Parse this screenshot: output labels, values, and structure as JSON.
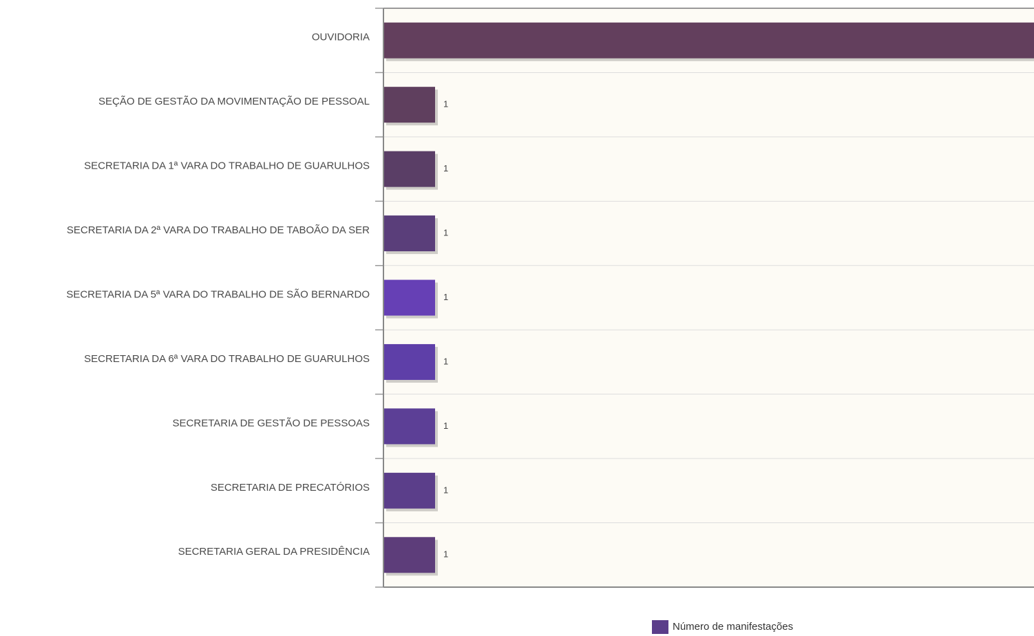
{
  "chart_data": {
    "type": "hbar",
    "categories": [
      "OUVIDORIA",
      "SEÇÃO DE GESTÃO DA MOVIMENTAÇÃO DE PESSOAL",
      "SECRETARIA DA 1ª VARA DO TRABALHO DE GUARULHOS",
      "SECRETARIA DA 2ª VARA DO TRABALHO DE TABOÃO DA SER",
      "SECRETARIA DA 5ª VARA DO TRABALHO DE SÃO BERNARDO",
      "SECRETARIA DA 6ª VARA DO TRABALHO DE GUARULHOS",
      "SECRETARIA DE GESTÃO DE PESSOAS",
      "SECRETARIA DE PRECATÓRIOS",
      "SECRETARIA GERAL DA PRESIDÊNCIA"
    ],
    "series": [
      {
        "name": "Número de manifestações",
        "color": "#5b3d8a",
        "colors": [
          "#633f5d",
          "#5f3f5e",
          "#5a3e66",
          "#5a3e7a",
          "#6640b5",
          "#5e3fa8",
          "#5c3f96",
          "#5b3e8a",
          "#5d3d7a"
        ],
        "values": [
          15,
          1,
          1,
          1,
          1,
          1,
          1,
          1,
          1
        ]
      }
    ],
    "xlim": [
      0,
      20
    ],
    "grid": true,
    "legend": "bottom"
  }
}
